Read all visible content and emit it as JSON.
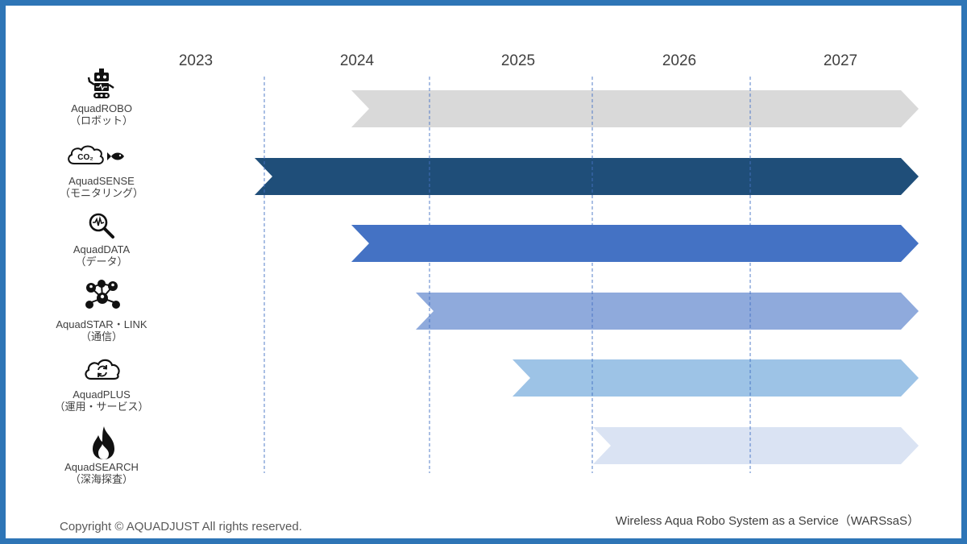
{
  "years": [
    "2023",
    "2024",
    "2025",
    "2026",
    "2027"
  ],
  "rows": [
    {
      "name": "AquadROBO",
      "sub": "（ロボット）",
      "icon": "robot-icon",
      "start_year": 2024.0,
      "color": "#d9d9d9"
    },
    {
      "name": "AquadSENSE",
      "sub": "（モニタリング）",
      "icon": "co2-fish-icon",
      "start_year": 2023.4,
      "color": "#1f4e79"
    },
    {
      "name": "AquadDATA",
      "sub": "（データ）",
      "icon": "magnifier-pulse-icon",
      "start_year": 2024.0,
      "color": "#4472c4"
    },
    {
      "name": "AquadSTAR・LINK",
      "sub": "（通信）",
      "icon": "network-icon",
      "start_year": 2024.4,
      "color": "#8faadc"
    },
    {
      "name": "AquadPLUS",
      "sub": "（運用・サービス）",
      "icon": "cloud-sync-icon",
      "start_year": 2025.0,
      "color": "#9dc3e6"
    },
    {
      "name": "AquadSEARCH",
      "sub": "（深海探査）",
      "icon": "flame-icon",
      "start_year": 2025.5,
      "color": "#dae3f3"
    }
  ],
  "footer": {
    "copyright": "Copyright © AQUADJUST  All rights reserved.",
    "service": "Wireless Aqua Robo System as a Service（WARSsaS）"
  }
}
